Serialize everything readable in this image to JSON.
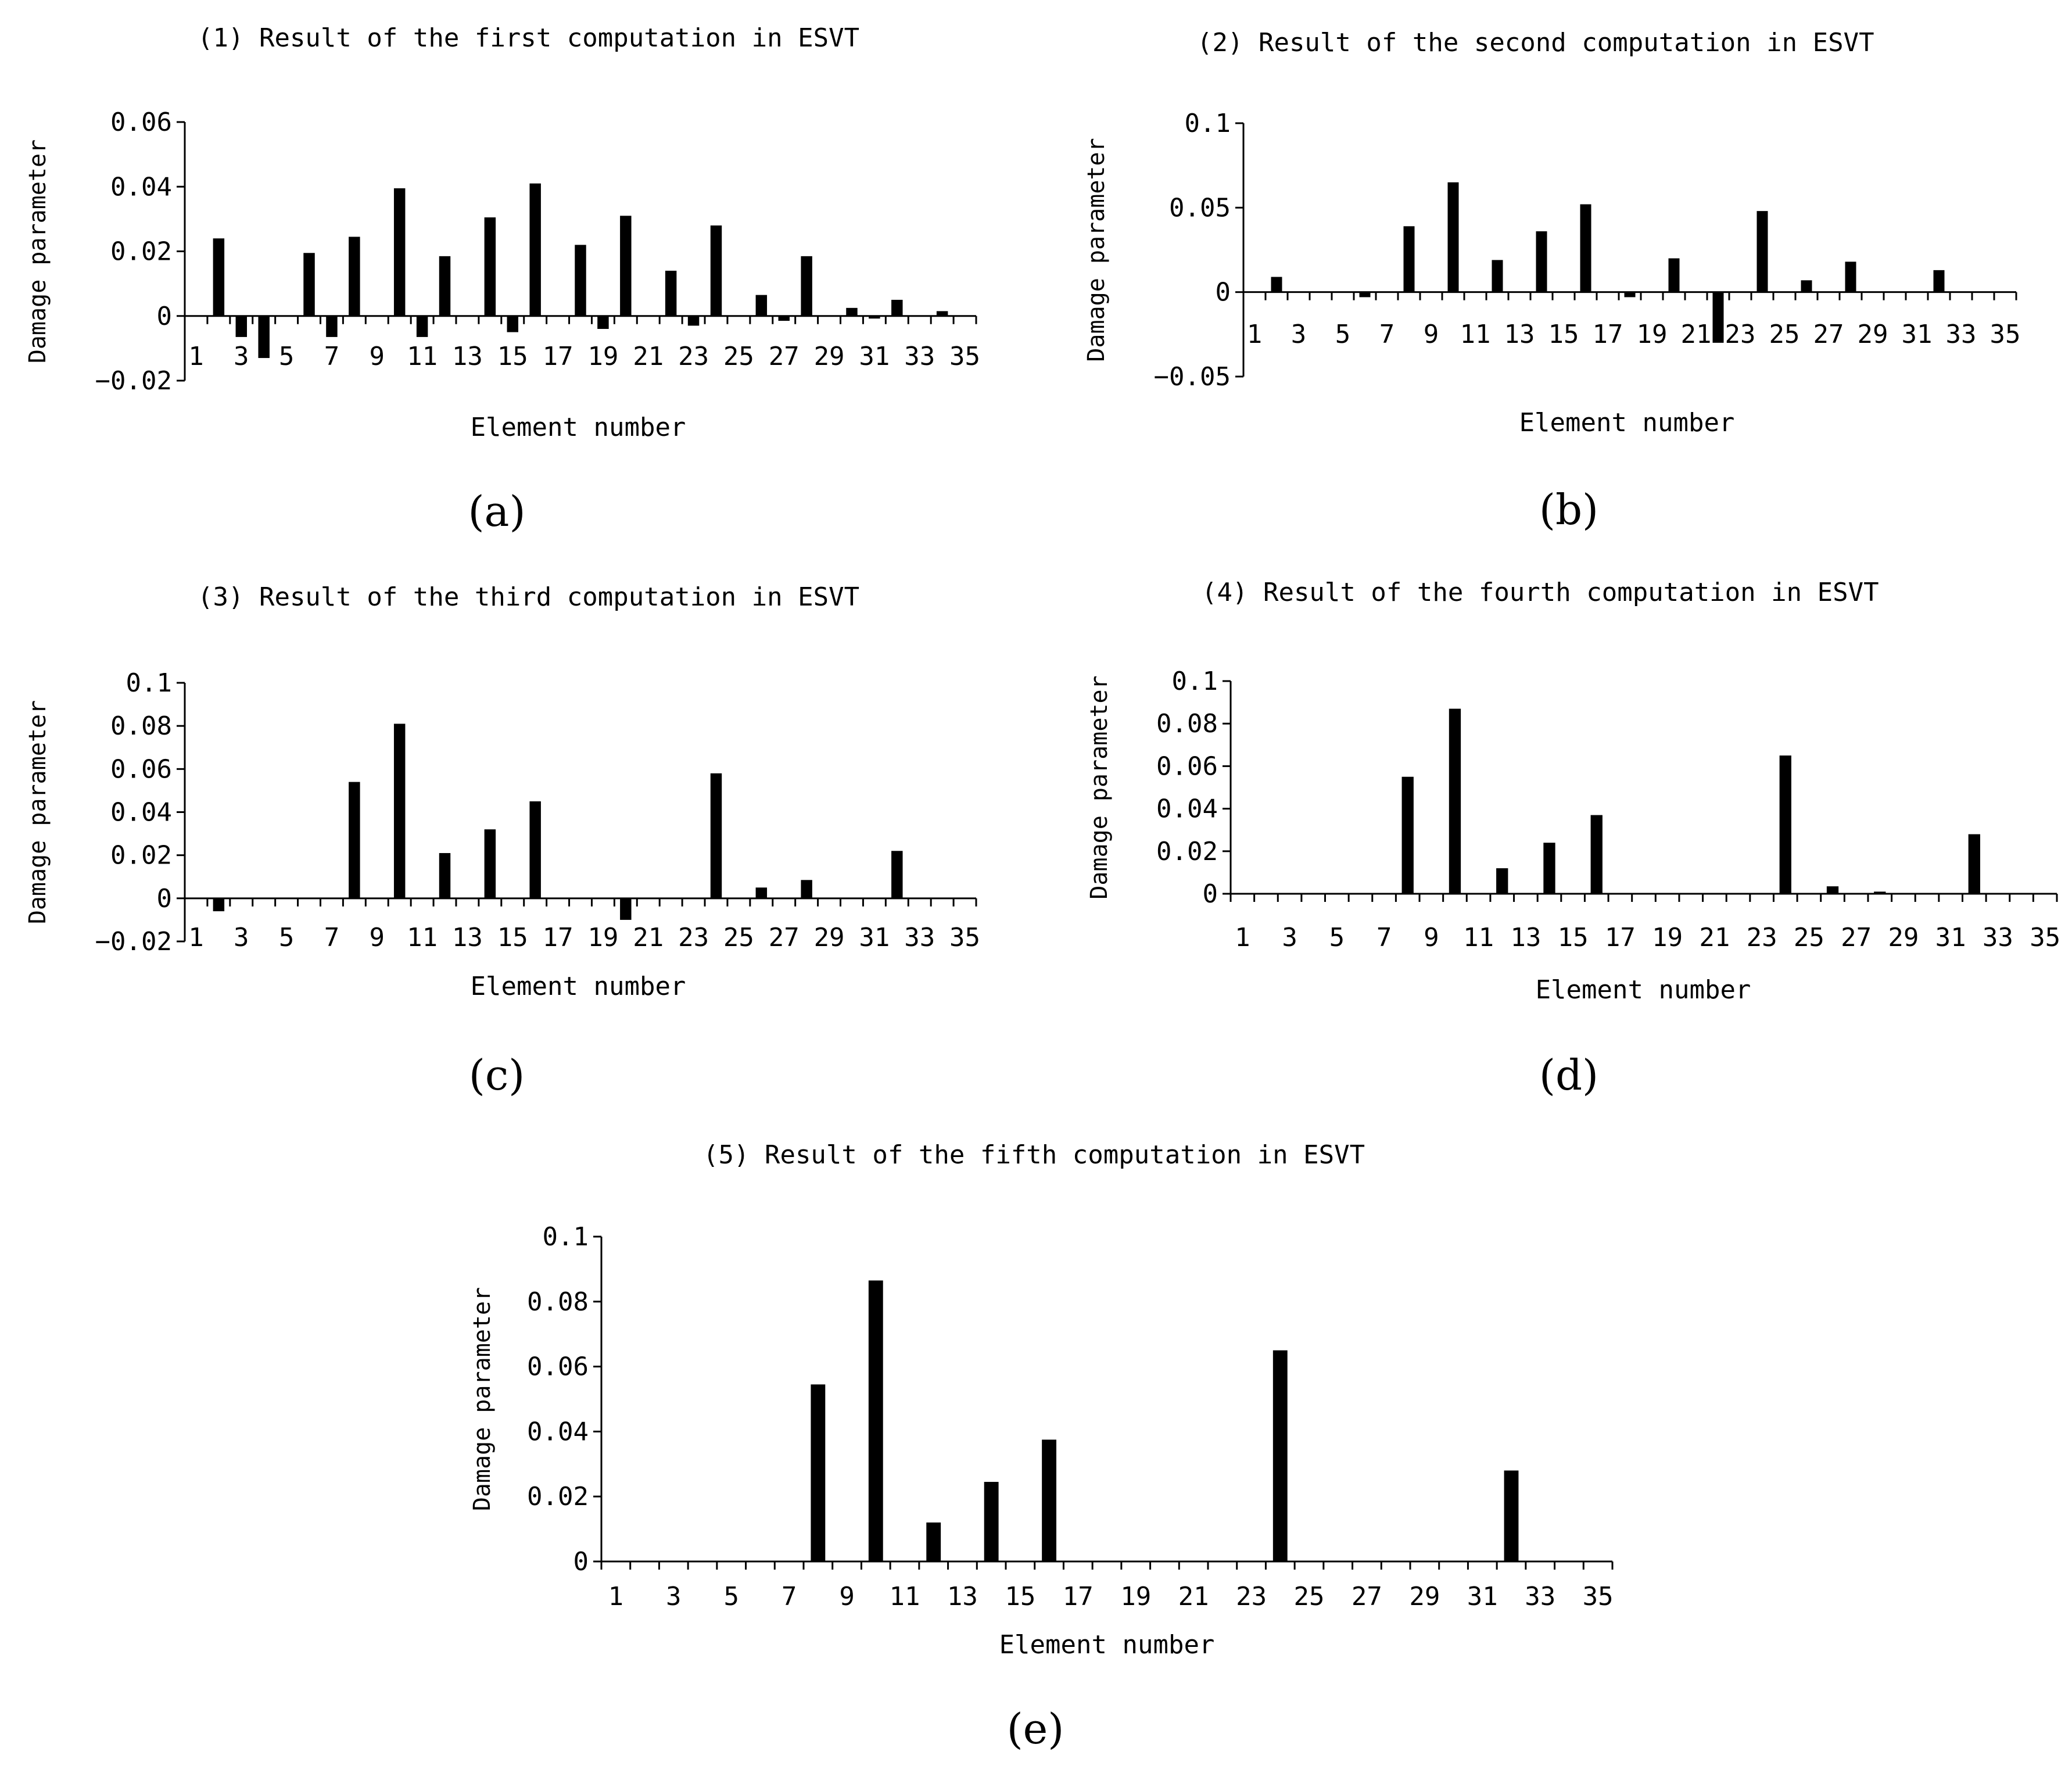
{
  "colors": {
    "bar": "#000000",
    "axis": "#000000",
    "background": "#ffffff"
  },
  "chart_data": [
    {
      "id": "a",
      "type": "bar",
      "caption": "(a)",
      "title": "(1) Result of the first computation in ESVT",
      "xlabel": "Element number",
      "ylabel": "Damage parameter",
      "ylim": [
        -0.02,
        0.06
      ],
      "yticks": [
        "0.06",
        "0.04",
        "0.02",
        "0",
        "−0.02"
      ],
      "ytick_values": [
        0.06,
        0.04,
        0.02,
        0,
        -0.02
      ],
      "xtick_labels": [
        "1",
        "3",
        "5",
        "7",
        "9",
        "11",
        "13",
        "15",
        "17",
        "19",
        "21",
        "23",
        "25",
        "27",
        "29",
        "31",
        "33",
        "35"
      ],
      "categories": [
        1,
        2,
        3,
        4,
        5,
        6,
        7,
        8,
        9,
        10,
        11,
        12,
        13,
        14,
        15,
        16,
        17,
        18,
        19,
        20,
        21,
        22,
        23,
        24,
        25,
        26,
        27,
        28,
        29,
        30,
        31,
        32,
        33,
        34,
        35
      ],
      "values": [
        0,
        0.024,
        -0.0065,
        -0.013,
        0,
        0.0195,
        -0.0065,
        0.0245,
        0,
        0.0395,
        -0.0065,
        0.0185,
        0,
        0.0305,
        -0.005,
        0.041,
        0,
        0.022,
        -0.004,
        0.031,
        0,
        0.014,
        -0.003,
        0.028,
        0,
        0.0065,
        -0.0015,
        0.0185,
        0,
        0.0025,
        -0.0008,
        0.005,
        0,
        0.0015,
        0
      ]
    },
    {
      "id": "b",
      "type": "bar",
      "caption": "(b)",
      "title": "(2) Result of the second computation in ESVT",
      "xlabel": "Element number",
      "ylabel": "Damage parameter",
      "ylim": [
        -0.05,
        0.1
      ],
      "yticks": [
        "0.1",
        "0.05",
        "0",
        "−0.05"
      ],
      "ytick_values": [
        0.1,
        0.05,
        0,
        -0.05
      ],
      "xtick_labels": [
        "1",
        "3",
        "5",
        "7",
        "9",
        "11",
        "13",
        "15",
        "17",
        "19",
        "21",
        "23",
        "25",
        "27",
        "29",
        "31",
        "33",
        "35"
      ],
      "categories": [
        1,
        2,
        3,
        4,
        5,
        6,
        7,
        8,
        9,
        10,
        11,
        12,
        13,
        14,
        15,
        16,
        17,
        18,
        19,
        20,
        21,
        22,
        23,
        24,
        25,
        26,
        27,
        28,
        29,
        30,
        31,
        32,
        33,
        34,
        35
      ],
      "values": [
        0,
        0.009,
        0,
        0,
        0,
        -0.003,
        0,
        0.039,
        0,
        0.065,
        0,
        0.019,
        0,
        0.036,
        0,
        0.052,
        0,
        -0.003,
        0,
        0.02,
        0,
        -0.03,
        0,
        0.048,
        0,
        0.007,
        0,
        0.018,
        0,
        0,
        0,
        0.013,
        0,
        0,
        0
      ]
    },
    {
      "id": "c",
      "type": "bar",
      "caption": "(c)",
      "title": "(3) Result of the third computation in ESVT",
      "xlabel": "Element number",
      "ylabel": "Damage parameter",
      "ylim": [
        -0.02,
        0.1
      ],
      "yticks": [
        "0.1",
        "0.08",
        "0.06",
        "0.04",
        "0.02",
        "0",
        "−0.02"
      ],
      "ytick_values": [
        0.1,
        0.08,
        0.06,
        0.04,
        0.02,
        0,
        -0.02
      ],
      "xtick_labels": [
        "1",
        "3",
        "5",
        "7",
        "9",
        "11",
        "13",
        "15",
        "17",
        "19",
        "21",
        "23",
        "25",
        "27",
        "29",
        "31",
        "33",
        "35"
      ],
      "categories": [
        1,
        2,
        3,
        4,
        5,
        6,
        7,
        8,
        9,
        10,
        11,
        12,
        13,
        14,
        15,
        16,
        17,
        18,
        19,
        20,
        21,
        22,
        23,
        24,
        25,
        26,
        27,
        28,
        29,
        30,
        31,
        32,
        33,
        34,
        35
      ],
      "values": [
        0,
        -0.006,
        0,
        0,
        0,
        0,
        0,
        0.054,
        0,
        0.081,
        0,
        0.021,
        0,
        0.032,
        0,
        0.045,
        0,
        0,
        0,
        -0.01,
        0,
        0,
        0,
        0.058,
        0,
        0.005,
        0,
        0.0085,
        0,
        0,
        0,
        0.022,
        0,
        0,
        0
      ]
    },
    {
      "id": "d",
      "type": "bar",
      "caption": "(d)",
      "title": "(4) Result of the fourth computation in ESVT",
      "xlabel": "Element number",
      "ylabel": "Damage parameter",
      "ylim": [
        0,
        0.1
      ],
      "yticks": [
        "0.1",
        "0.08",
        "0.06",
        "0.04",
        "0.02",
        "0"
      ],
      "ytick_values": [
        0.1,
        0.08,
        0.06,
        0.04,
        0.02,
        0
      ],
      "xtick_labels": [
        "1",
        "3",
        "5",
        "7",
        "9",
        "11",
        "13",
        "15",
        "17",
        "19",
        "21",
        "23",
        "25",
        "27",
        "29",
        "31",
        "33",
        "35"
      ],
      "categories": [
        1,
        2,
        3,
        4,
        5,
        6,
        7,
        8,
        9,
        10,
        11,
        12,
        13,
        14,
        15,
        16,
        17,
        18,
        19,
        20,
        21,
        22,
        23,
        24,
        25,
        26,
        27,
        28,
        29,
        30,
        31,
        32,
        33,
        34,
        35
      ],
      "values": [
        0,
        0,
        0,
        0,
        0,
        0,
        0,
        0.055,
        0,
        0.087,
        0,
        0.012,
        0,
        0.024,
        0,
        0.037,
        0,
        0,
        0,
        0,
        0,
        0,
        0,
        0.065,
        0,
        0.0035,
        0,
        0.001,
        0,
        0,
        0,
        0.028,
        0,
        0,
        0
      ]
    },
    {
      "id": "e",
      "type": "bar",
      "caption": "(e)",
      "title": "(5) Result of the fifth computation in ESVT",
      "xlabel": "Element number",
      "ylabel": "Damage parameter",
      "ylim": [
        0,
        0.1
      ],
      "yticks": [
        "0.1",
        "0.08",
        "0.06",
        "0.04",
        "0.02",
        "0"
      ],
      "ytick_values": [
        0.1,
        0.08,
        0.06,
        0.04,
        0.02,
        0
      ],
      "xtick_labels": [
        "1",
        "3",
        "5",
        "7",
        "9",
        "11",
        "13",
        "15",
        "17",
        "19",
        "21",
        "23",
        "25",
        "27",
        "29",
        "31",
        "33",
        "35"
      ],
      "categories": [
        1,
        2,
        3,
        4,
        5,
        6,
        7,
        8,
        9,
        10,
        11,
        12,
        13,
        14,
        15,
        16,
        17,
        18,
        19,
        20,
        21,
        22,
        23,
        24,
        25,
        26,
        27,
        28,
        29,
        30,
        31,
        32,
        33,
        34,
        35
      ],
      "values": [
        0,
        0,
        0,
        0,
        0,
        0,
        0,
        0.0545,
        0,
        0.0865,
        0,
        0.012,
        0,
        0.0245,
        0,
        0.0375,
        0,
        0,
        0,
        0,
        0,
        0,
        0,
        0.065,
        0,
        0,
        0,
        0,
        0,
        0,
        0,
        0.028,
        0,
        0,
        0
      ]
    }
  ]
}
